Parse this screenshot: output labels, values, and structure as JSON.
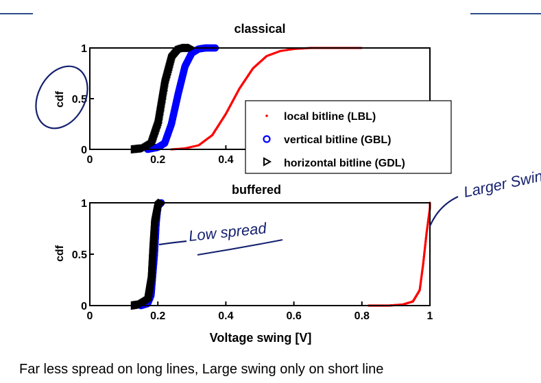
{
  "caption": "Far less spread on long lines, Large swing only on short line",
  "annotations": {
    "low_spread": "Low spread",
    "larger_swing": "Larger Swing"
  },
  "legend": {
    "placement": "inside-right of top chart",
    "entries": [
      {
        "label": "local bitline (LBL)",
        "marker": "dot",
        "color": "#ff0000"
      },
      {
        "label": "vertical bitline (GBL)",
        "marker": "circle",
        "color": "#0000ff"
      },
      {
        "label": "horizontal bitline (GDL)",
        "marker": "triangle-right",
        "color": "#000000"
      }
    ]
  },
  "chart_data": [
    {
      "type": "line",
      "title": "classical",
      "xlabel": "",
      "ylabel": "cdf",
      "xlim": [
        0,
        1
      ],
      "ylim": [
        0,
        1
      ],
      "xticks": [
        "0",
        "0.2",
        "0.4"
      ],
      "yticks": [
        "0",
        "0.5",
        "1"
      ],
      "grid": false,
      "series": [
        {
          "name": "local bitline (LBL)",
          "color": "#ff0000",
          "x": [
            0.24,
            0.28,
            0.32,
            0.36,
            0.4,
            0.44,
            0.48,
            0.52,
            0.56,
            0.6,
            0.65,
            0.72,
            0.8
          ],
          "y": [
            0.0,
            0.01,
            0.04,
            0.14,
            0.35,
            0.6,
            0.8,
            0.92,
            0.97,
            0.99,
            1.0,
            1.0,
            1.0
          ]
        },
        {
          "name": "vertical bitline (GBL)",
          "color": "#0000ff",
          "x": [
            0.17,
            0.2,
            0.22,
            0.24,
            0.26,
            0.28,
            0.3,
            0.32,
            0.34,
            0.37
          ],
          "y": [
            0.0,
            0.02,
            0.06,
            0.25,
            0.55,
            0.82,
            0.95,
            0.99,
            1.0,
            1.0
          ]
        },
        {
          "name": "horizontal bitline (GDL)",
          "color": "#000000",
          "x": [
            0.13,
            0.16,
            0.18,
            0.2,
            0.22,
            0.24,
            0.26,
            0.28,
            0.3
          ],
          "y": [
            0.0,
            0.01,
            0.05,
            0.25,
            0.65,
            0.9,
            0.98,
            1.0,
            1.0
          ]
        }
      ]
    },
    {
      "type": "line",
      "title": "buffered",
      "xlabel": "Voltage swing [V]",
      "ylabel": "cdf",
      "xlim": [
        0,
        1
      ],
      "ylim": [
        0,
        1
      ],
      "xticks": [
        "0",
        "0.2",
        "0.4",
        "0.6",
        "0.8",
        "1"
      ],
      "yticks": [
        "0",
        "0.5",
        "1"
      ],
      "grid": false,
      "series": [
        {
          "name": "local bitline (LBL)",
          "color": "#ff0000",
          "x": [
            0.82,
            0.88,
            0.92,
            0.95,
            0.97,
            0.98,
            0.99,
            1.0,
            1.0
          ],
          "y": [
            0.0,
            0.0,
            0.01,
            0.04,
            0.15,
            0.4,
            0.7,
            0.95,
            1.0
          ]
        },
        {
          "name": "vertical bitline (GBL)",
          "color": "#0000ff",
          "x": [
            0.15,
            0.17,
            0.18,
            0.19,
            0.195,
            0.2,
            0.21
          ],
          "y": [
            0.0,
            0.02,
            0.1,
            0.5,
            0.8,
            0.97,
            1.0
          ]
        },
        {
          "name": "horizontal bitline (GDL)",
          "color": "#000000",
          "x": [
            0.13,
            0.15,
            0.17,
            0.18,
            0.185,
            0.19,
            0.2,
            0.21
          ],
          "y": [
            0.0,
            0.01,
            0.05,
            0.25,
            0.55,
            0.8,
            0.97,
            1.0
          ]
        }
      ]
    }
  ]
}
